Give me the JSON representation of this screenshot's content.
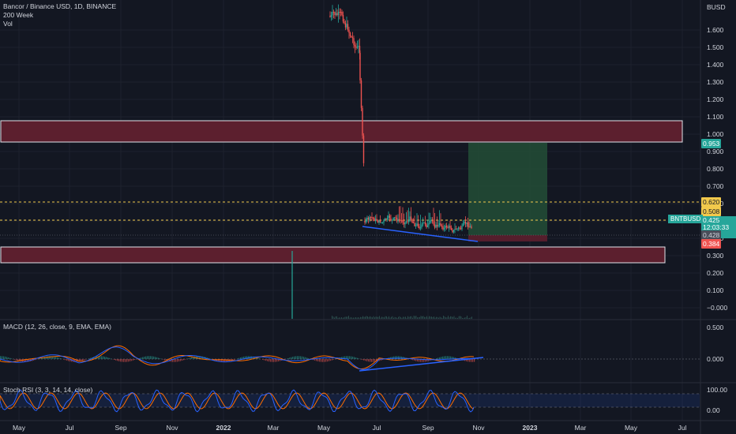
{
  "legend": {
    "title": "Bancor / Binance USD, 1D, BINANCE",
    "indicators": [
      "200 Week",
      "Vol"
    ],
    "macd_label": "MACD (12, 26, close, 9, EMA, EMA)",
    "stochrsi_label": "Stoch RSI (3, 3, 14, 14, close)"
  },
  "price_axis": {
    "currency": "BUSD",
    "ticks": [
      "1.600",
      "1.500",
      "1.400",
      "1.300",
      "1.200",
      "1.100",
      "1.000",
      "0.900",
      "0.800",
      "0.700",
      "0.600",
      "0.500",
      "0.400",
      "0.300",
      "0.200",
      "0.100",
      "−0.000"
    ]
  },
  "macd_axis": {
    "ticks": [
      "0.500",
      "0.000"
    ]
  },
  "stoch_axis": {
    "ticks": [
      "100.00",
      "0.00"
    ]
  },
  "time_axis": {
    "ticks": [
      "May",
      "Jul",
      "Sep",
      "Nov",
      "2022",
      "Mar",
      "May",
      "Jul",
      "Sep",
      "Nov",
      "2023",
      "Mar",
      "May",
      "Jul"
    ]
  },
  "badges": {
    "target": "0.953",
    "level_high": "0.620",
    "level_low": "0.508",
    "symbol": "BNTBUSD",
    "current_price": "0.425",
    "countdown": "12:03:33",
    "ma_value": "0.428",
    "stop": "0.384"
  },
  "colors": {
    "background": "#131722",
    "up_candle": "#26a69a",
    "down_candle": "#ef5350",
    "zone_fill": "#5c1f2e",
    "long_target_fill": "#234d36",
    "trendline": "#2962ff",
    "level_line": "#f2c94c",
    "macd_line": "#2962ff",
    "signal_line": "#ff6d00",
    "stoch_k": "#2962ff",
    "stoch_d": "#ff6d00"
  }
}
